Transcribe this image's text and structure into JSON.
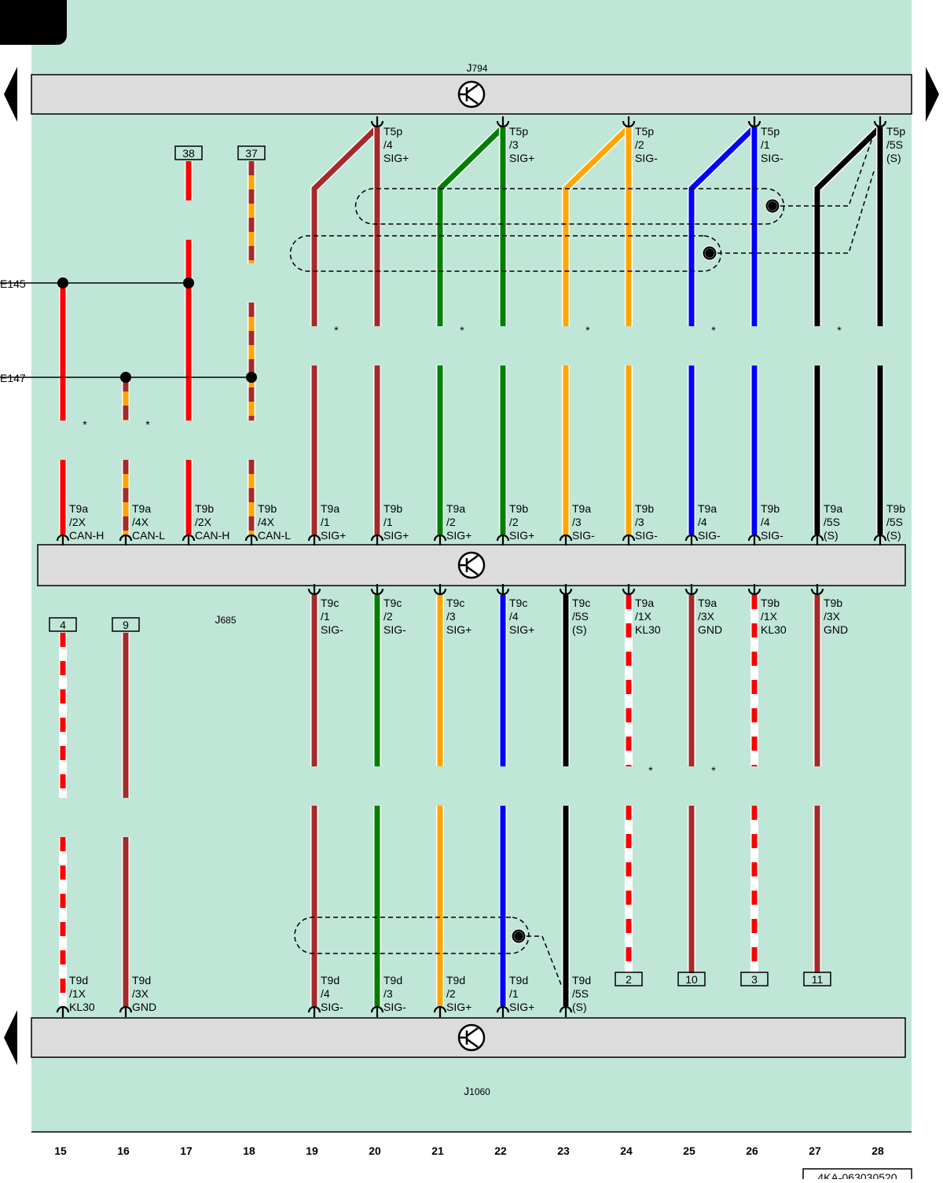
{
  "diagram": {
    "components": [
      {
        "name": "J",
        "sub": "794"
      },
      {
        "name": "J",
        "sub": "685"
      },
      {
        "name": "J",
        "sub": "1060"
      }
    ],
    "ground_labels": [
      "E145",
      "E147"
    ],
    "j794_pins": [
      [
        "T5p",
        "/4",
        "SIG+"
      ],
      [
        "T5p",
        "/3",
        "SIG+"
      ],
      [
        "T5p",
        "/2",
        "SIG-"
      ],
      [
        "T5p",
        "/1",
        "SIG-"
      ],
      [
        "T5p",
        "/5S",
        "(S)"
      ]
    ],
    "j685_top_pins": [
      [
        "T9a",
        "/2X",
        "CAN-H"
      ],
      [
        "T9a",
        "/4X",
        "CAN-L"
      ],
      [
        "T9b",
        "/2X",
        "CAN-H"
      ],
      [
        "T9b",
        "/4X",
        "CAN-L"
      ],
      [
        "T9a",
        "/1",
        "SIG+"
      ],
      [
        "T9b",
        "/1",
        "SIG+"
      ],
      [
        "T9a",
        "/2",
        "SIG+"
      ],
      [
        "T9b",
        "/2",
        "SIG+"
      ],
      [
        "T9a",
        "/3",
        "SIG-"
      ],
      [
        "T9b",
        "/3",
        "SIG-"
      ],
      [
        "T9a",
        "/4",
        "SIG-"
      ],
      [
        "T9b",
        "/4",
        "SIG-"
      ],
      [
        "T9a",
        "/5S",
        "(S)"
      ],
      [
        "T9b",
        "/5S",
        "(S)"
      ]
    ],
    "j685_bottom_pins": [
      [
        "T9c",
        "/1",
        "SIG-"
      ],
      [
        "T9c",
        "/2",
        "SIG-"
      ],
      [
        "T9c",
        "/3",
        "SIG+"
      ],
      [
        "T9c",
        "/4",
        "SIG+"
      ],
      [
        "T9c",
        "/5S",
        "(S)"
      ],
      [
        "T9a",
        "/1X",
        "KL30"
      ],
      [
        "T9a",
        "/3X",
        "GND"
      ],
      [
        "T9b",
        "/1X",
        "KL30"
      ],
      [
        "T9b",
        "/3X",
        "GND"
      ]
    ],
    "j1060_pins": [
      [
        "T9d",
        "/1X",
        "KL30"
      ],
      [
        "T9d",
        "/3X",
        "GND"
      ],
      [
        "T9d",
        "/4",
        "SIG-"
      ],
      [
        "T9d",
        "/3",
        "SIG-"
      ],
      [
        "T9d",
        "/2",
        "SIG+"
      ],
      [
        "T9d",
        "/1",
        "SIG+"
      ],
      [
        "T9d",
        "/5S",
        "(S)"
      ]
    ],
    "wire_refs_top": [
      "38",
      "37"
    ],
    "wire_refs_left": [
      "4",
      "9"
    ],
    "wire_refs_bottom": [
      "2",
      "10",
      "3",
      "11"
    ],
    "asterisks": [
      "*",
      "*",
      "*",
      "*",
      "*",
      "*",
      "*",
      "*",
      "*"
    ],
    "columns": [
      "15",
      "16",
      "17",
      "18",
      "19",
      "20",
      "21",
      "22",
      "23",
      "24",
      "25",
      "26",
      "27",
      "28"
    ],
    "document_number": "4KA-063030520"
  }
}
